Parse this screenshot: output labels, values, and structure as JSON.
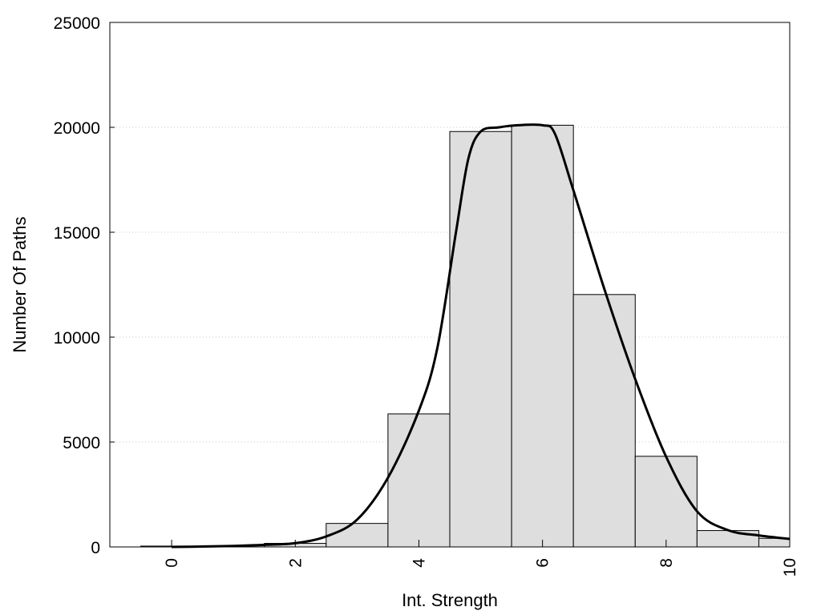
{
  "chart_data": {
    "type": "bar",
    "xlabel": "Int. Strength",
    "ylabel": "Number Of Paths",
    "xlim": [
      -1,
      10
    ],
    "ylim": [
      0,
      25000
    ],
    "x_ticks": [
      0,
      2,
      4,
      6,
      8,
      10
    ],
    "y_ticks": [
      0,
      5000,
      10000,
      15000,
      20000,
      25000
    ],
    "grid": "horizontal dotted",
    "bar_width": 1,
    "bar_color": "#dedede",
    "bar_edge_color": "#000000",
    "x": [
      0,
      1,
      2,
      3,
      4,
      5,
      6,
      7,
      8,
      9,
      10
    ],
    "values": [
      40,
      60,
      170,
      1120,
      6340,
      19800,
      20100,
      12030,
      4320,
      780,
      410
    ],
    "series": [
      {
        "type": "line",
        "color": "#000000",
        "x": [
          0,
          0.5,
          1,
          1.5,
          2,
          2.5,
          3,
          3.5,
          4,
          4.3,
          4.6,
          4.8,
          5,
          5.3,
          5.6,
          6,
          6.2,
          6.5,
          7,
          7.5,
          8,
          8.5,
          9,
          9.5,
          10
        ],
        "y": [
          0,
          20,
          50,
          100,
          180,
          500,
          1300,
          3300,
          6500,
          9500,
          15000,
          18500,
          19800,
          20000,
          20100,
          20100,
          19700,
          17000,
          12300,
          8000,
          4300,
          1700,
          800,
          550,
          380
        ]
      }
    ]
  }
}
